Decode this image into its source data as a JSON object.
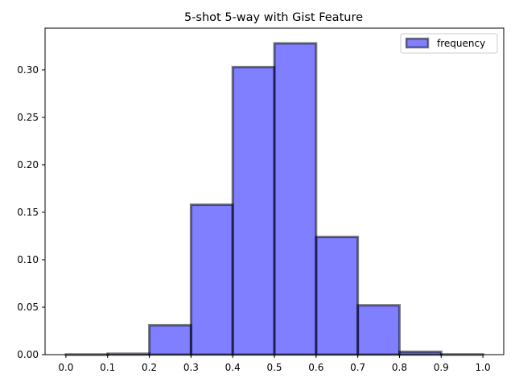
{
  "chart_data": {
    "type": "bar",
    "title": "5-shot 5-way with Gist Feature",
    "xlabel": "",
    "ylabel": "",
    "bin_edges": [
      0.0,
      0.1,
      0.2,
      0.3,
      0.4,
      0.5,
      0.6,
      0.7,
      0.8,
      0.9,
      1.0
    ],
    "series": [
      {
        "name": "frequency",
        "values": [
          0.0002,
          0.001,
          0.031,
          0.158,
          0.303,
          0.328,
          0.124,
          0.052,
          0.003,
          0.0003
        ]
      }
    ],
    "xlim": [
      -0.05,
      1.05
    ],
    "ylim": [
      0.0,
      0.344
    ],
    "x_ticks": [
      "0.0",
      "0.1",
      "0.2",
      "0.3",
      "0.4",
      "0.5",
      "0.6",
      "0.7",
      "0.8",
      "0.9",
      "1.0"
    ],
    "y_ticks": [
      "0.00",
      "0.05",
      "0.10",
      "0.15",
      "0.20",
      "0.25",
      "0.30"
    ],
    "grid": false,
    "legend_position": "top-right",
    "colors": {
      "bar_fill": "#0000ff",
      "bar_fill_opacity": 0.5,
      "bar_edge": "#000000",
      "bar_edge_opacity": 0.5
    }
  }
}
